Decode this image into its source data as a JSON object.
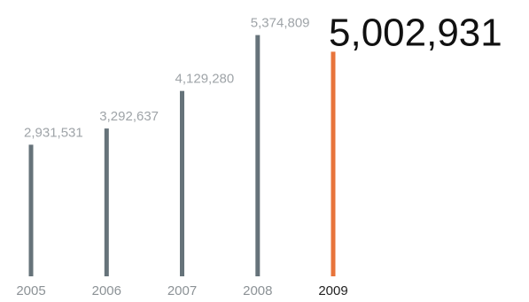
{
  "chart_data": {
    "type": "bar",
    "categories": [
      "2005",
      "2006",
      "2007",
      "2008",
      "2009"
    ],
    "values": [
      2931531,
      3292637,
      4129280,
      5374809,
      5002931
    ],
    "value_labels": [
      "2,931,531",
      "3,292,637",
      "4,129,280",
      "5,374,809",
      "5,002,931"
    ],
    "highlight_category": "2009",
    "title": "",
    "xlabel": "",
    "ylabel": "",
    "ylim": [
      0,
      5800000
    ],
    "grid": false,
    "colors": {
      "bar": "#66737a",
      "highlight_bar": "#e8743b",
      "label": "#9fa4a8",
      "highlight_label": "#111111"
    }
  }
}
